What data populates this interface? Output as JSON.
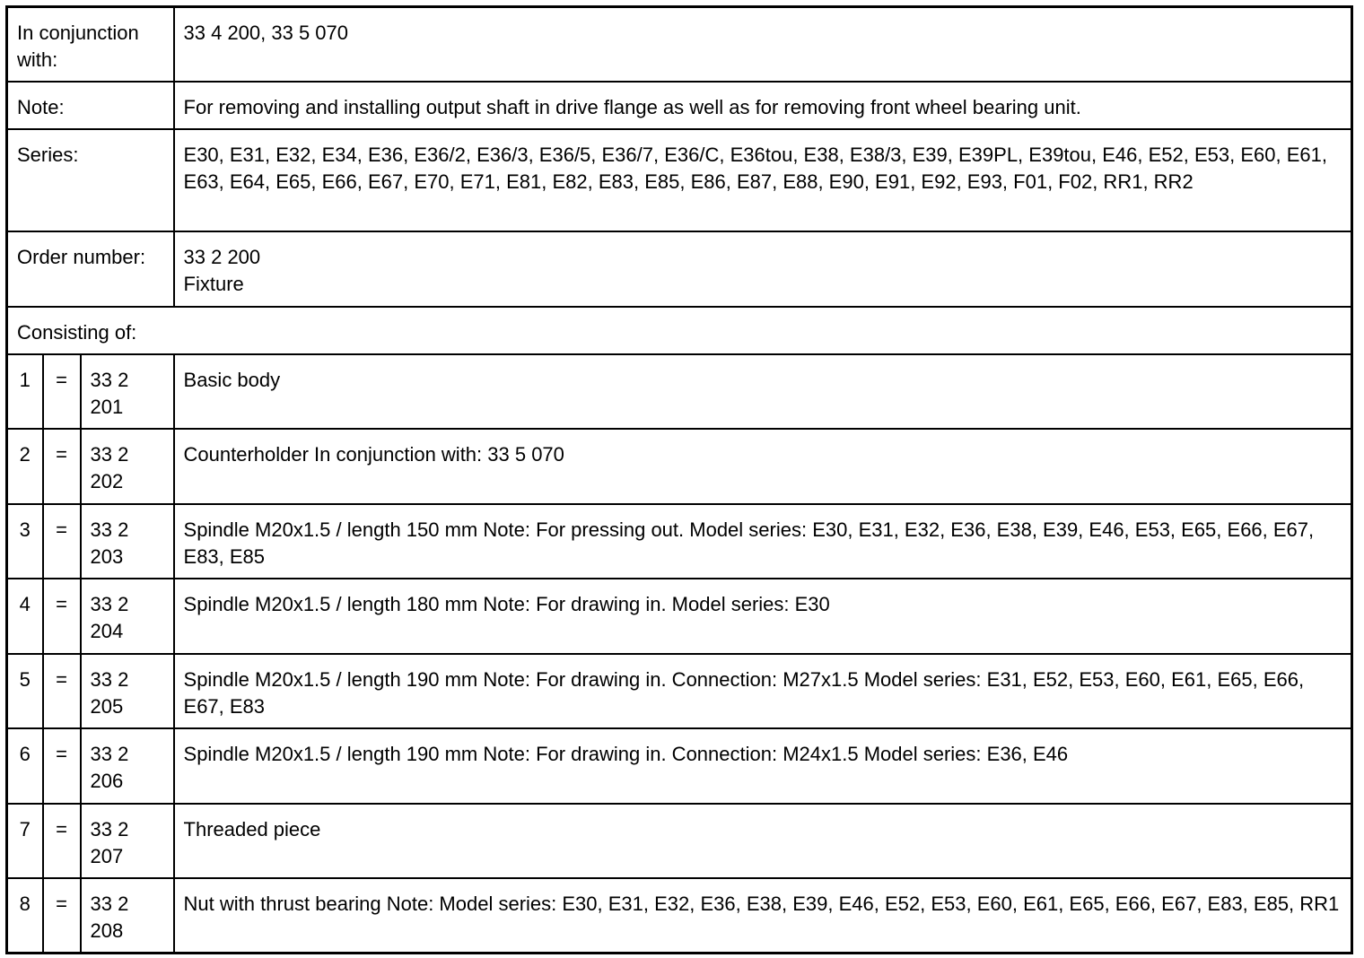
{
  "header_rows": [
    {
      "label": "In conjunction with:",
      "value": "33 4 200, 33 5 070"
    },
    {
      "label": "Note:",
      "value": "For removing and installing output shaft in drive flange as well as for removing front wheel bearing unit."
    },
    {
      "label": "Series:",
      "value": "E30, E31, E32, E34, E36, E36/2, E36/3, E36/5, E36/7, E36/C, E36tou, E38, E38/3, E39, E39PL, E39tou, E46, E52, E53, E60, E61, E63, E64, E65, E66, E67, E70, E71, E81, E82, E83, E85, E86, E87, E88, E90, E91, E92, E93, F01, F02, RR1, RR2"
    },
    {
      "label": "Order number:",
      "value_line1": "33 2 200",
      "value_line2": "Fixture"
    }
  ],
  "consisting_of_label": "Consisting of:",
  "items": [
    {
      "num": "1",
      "eq": "=",
      "part": "33 2 201",
      "desc": "Basic body"
    },
    {
      "num": "2",
      "eq": "=",
      "part": "33 2 202",
      "desc": "Counterholder In conjunction with: 33 5 070"
    },
    {
      "num": "3",
      "eq": "=",
      "part": "33 2 203",
      "desc": "Spindle M20x1.5 / length 150 mm Note: For pressing out. Model series: E30, E31, E32, E36, E38, E39, E46, E53, E65, E66, E67, E83, E85"
    },
    {
      "num": "4",
      "eq": "=",
      "part": "33 2 204",
      "desc": "Spindle M20x1.5 / length 180 mm Note: For drawing in. Model series: E30"
    },
    {
      "num": "5",
      "eq": "=",
      "part": "33 2 205",
      "desc": "Spindle M20x1.5 / length 190 mm Note: For drawing in. Connection: M27x1.5 Model series: E31, E52, E53, E60, E61, E65, E66, E67, E83"
    },
    {
      "num": "6",
      "eq": "=",
      "part": "33 2 206",
      "desc": "Spindle M20x1.5 / length 190 mm Note: For drawing in. Connection: M24x1.5 Model series: E36, E46"
    },
    {
      "num": "7",
      "eq": "=",
      "part": "33 2 207",
      "desc": "Threaded piece"
    },
    {
      "num": "8",
      "eq": "=",
      "part": "33 2 208",
      "desc": "Nut with thrust bearing Note: Model series: E30, E31, E32, E36, E38, E39, E46, E52, E53, E60, E61, E65, E66, E67, E83, E85, RR1"
    }
  ]
}
